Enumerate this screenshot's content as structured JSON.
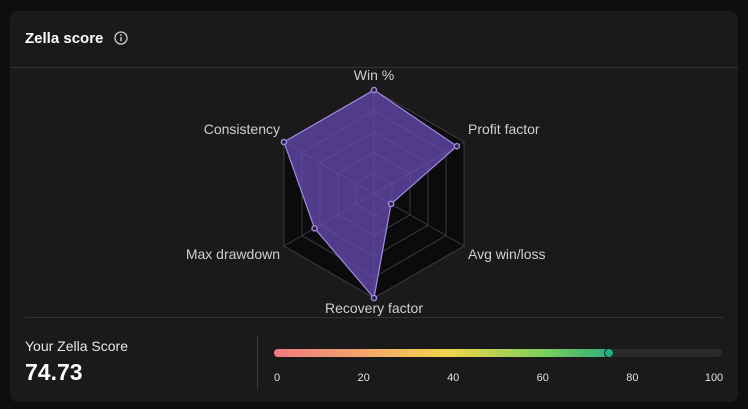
{
  "widget": {
    "title": "Zella score",
    "info_icon": "info-circle-icon"
  },
  "radar": {
    "axes": [
      "Win %",
      "Profit factor",
      "Avg win/loss",
      "Recovery factor",
      "Max drawdown",
      "Consistency"
    ],
    "values": [
      100,
      92,
      19,
      100,
      66,
      100
    ],
    "max": 100,
    "grid_levels": 5,
    "fill_color": "#6b4fbb",
    "point_color": "#9f8be0"
  },
  "score": {
    "label": "Your Zella Score",
    "value": "74.73",
    "numeric": 74.73,
    "min": 0,
    "max": 100,
    "ticks": [
      "0",
      "20",
      "40",
      "60",
      "80",
      "100"
    ]
  }
}
